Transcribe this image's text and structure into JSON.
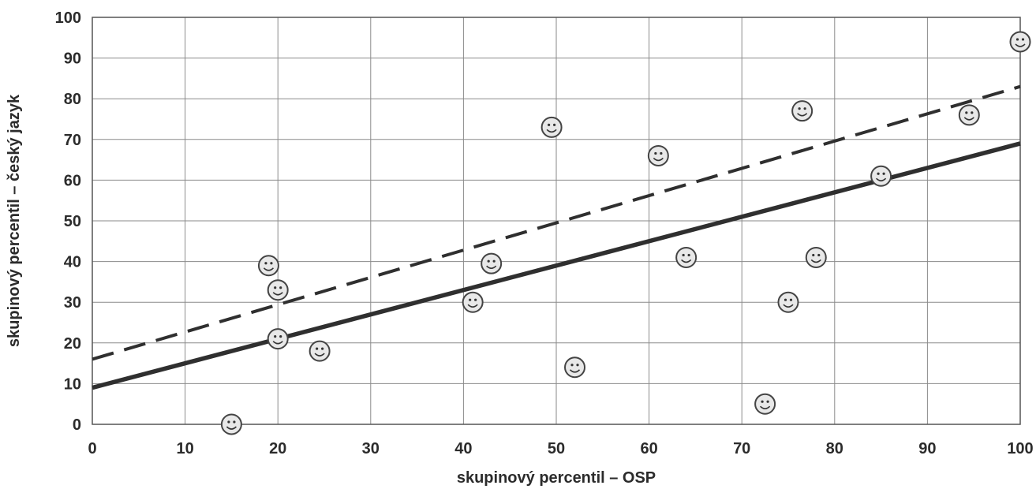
{
  "chart_data": {
    "type": "scatter",
    "xlabel": "skupinový percentil – OSP",
    "ylabel": "skupinový percentil – český jazyk",
    "xlim": [
      0,
      100
    ],
    "ylim": [
      0,
      100
    ],
    "xticks": [
      0,
      10,
      20,
      30,
      40,
      50,
      60,
      70,
      80,
      90,
      100
    ],
    "yticks": [
      0,
      10,
      20,
      30,
      40,
      50,
      60,
      70,
      80,
      90,
      100
    ],
    "grid": true,
    "marker": "smiley-face",
    "points": [
      {
        "x": 15,
        "y": 0
      },
      {
        "x": 19,
        "y": 39
      },
      {
        "x": 20,
        "y": 33
      },
      {
        "x": 20,
        "y": 21
      },
      {
        "x": 24.5,
        "y": 18
      },
      {
        "x": 41,
        "y": 30
      },
      {
        "x": 43,
        "y": 39.5
      },
      {
        "x": 49.5,
        "y": 73
      },
      {
        "x": 52,
        "y": 14
      },
      {
        "x": 61,
        "y": 66
      },
      {
        "x": 64,
        "y": 41
      },
      {
        "x": 72.5,
        "y": 5
      },
      {
        "x": 75,
        "y": 30
      },
      {
        "x": 76.5,
        "y": 77
      },
      {
        "x": 78,
        "y": 41
      },
      {
        "x": 85,
        "y": 61
      },
      {
        "x": 94.5,
        "y": 76
      },
      {
        "x": 100,
        "y": 94
      }
    ],
    "lines": [
      {
        "style": "solid",
        "color": "#2f2f2f",
        "x": [
          0,
          100
        ],
        "y": [
          9,
          69
        ]
      },
      {
        "style": "dashed",
        "color": "#2f2f2f",
        "x": [
          0,
          100
        ],
        "y": [
          16,
          83
        ]
      }
    ]
  }
}
